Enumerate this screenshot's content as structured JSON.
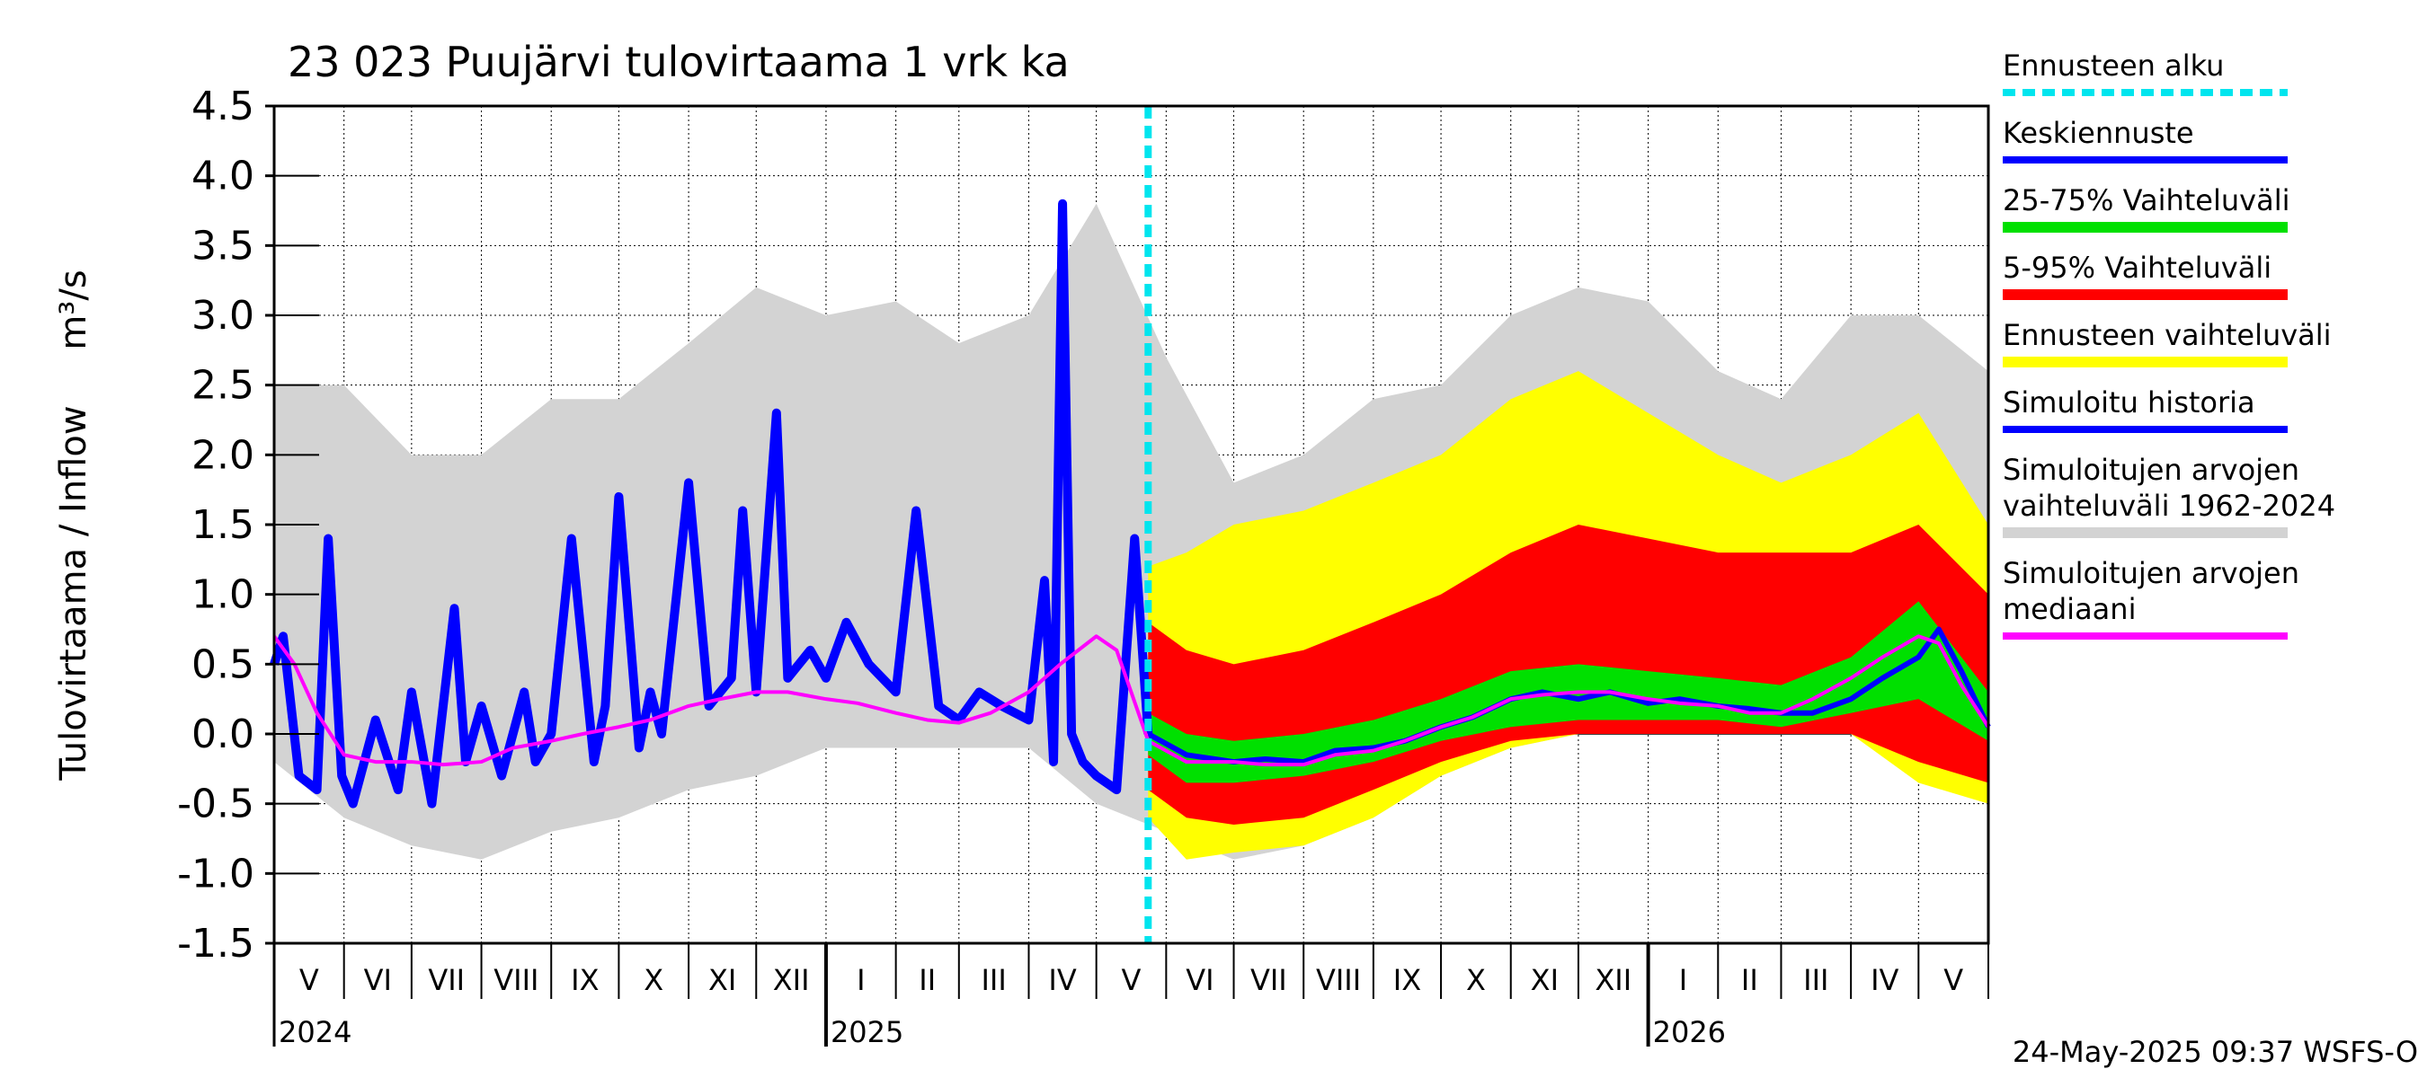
{
  "chart_data": {
    "type": "area",
    "title": "23 023 Puujärvi tulovirtaama 1 vrk ka",
    "ylabel": "Tulovirtaama / Inflow",
    "yunit": "m³/s",
    "ylim": [
      -1.5,
      4.5
    ],
    "yticks": [
      "4.5",
      "4.0",
      "3.5",
      "3.0",
      "2.5",
      "2.0",
      "1.5",
      "1.0",
      "0.5",
      "0.0",
      "-0.5",
      "-1.0",
      "-1.5"
    ],
    "xlim": [
      "2024-05-01",
      "2026-06-01"
    ],
    "months": [
      "V",
      "VI",
      "VII",
      "VIII",
      "IX",
      "X",
      "XI",
      "XII",
      "I",
      "II",
      "III",
      "IV",
      "V",
      "VI",
      "VII",
      "VIII",
      "IX",
      "X",
      "XI",
      "XII",
      "I",
      "II",
      "III",
      "IV",
      "V"
    ],
    "years": [
      "2024",
      "2025",
      "2026"
    ],
    "forecast_start": "2025-05-24",
    "grid": true,
    "footer": "24-May-2025 09:37 WSFS-O",
    "colors": {
      "forecast_start": "#00e5ee",
      "mean_forecast": "#0000ff",
      "p25_75": "#00e000",
      "p5_95": "#ff0000",
      "forecast_range": "#ffff00",
      "simulated_history": "#0000ff",
      "historical_range": "#d3d3d3",
      "median": "#ff00ff"
    },
    "legend": [
      {
        "label": "Ennusteen alku",
        "key": "forecast_start",
        "style": "dashed"
      },
      {
        "label": "Keskiennuste",
        "key": "mean_forecast",
        "style": "line"
      },
      {
        "label": "25-75% Vaihteluväli",
        "key": "p25_75",
        "style": "band"
      },
      {
        "label": "5-95% Vaihteluväli",
        "key": "p5_95",
        "style": "band"
      },
      {
        "label": "Ennusteen vaihteluväli",
        "key": "forecast_range",
        "style": "band"
      },
      {
        "label": "Simuloitu historia",
        "key": "simulated_history",
        "style": "line"
      },
      {
        "label": "Simuloitujen arvojen\nvaihteluväli 1962-2024",
        "key": "historical_range",
        "style": "band"
      },
      {
        "label": "Simuloitujen arvojen\nmediaani",
        "key": "median",
        "style": "line"
      }
    ],
    "series": {
      "median": {
        "x": [
          "2024-05-01",
          "2024-05-10",
          "2024-05-20",
          "2024-06-01",
          "2024-06-15",
          "2024-07-01",
          "2024-07-15",
          "2024-08-01",
          "2024-08-15",
          "2024-09-01",
          "2024-09-15",
          "2024-10-01",
          "2024-10-15",
          "2024-11-01",
          "2024-11-15",
          "2024-12-01",
          "2024-12-15",
          "2025-01-01",
          "2025-01-15",
          "2025-02-01",
          "2025-02-15",
          "2025-03-01",
          "2025-03-15",
          "2025-04-01",
          "2025-04-15",
          "2025-05-01",
          "2025-05-10",
          "2025-05-24",
          "2025-06-10",
          "2025-07-01",
          "2025-07-15",
          "2025-08-01",
          "2025-08-15",
          "2025-09-01",
          "2025-09-15",
          "2025-10-01",
          "2025-10-15",
          "2025-11-01",
          "2025-11-15",
          "2025-12-01",
          "2025-12-15",
          "2026-01-01",
          "2026-01-15",
          "2026-02-01",
          "2026-02-15",
          "2026-03-01",
          "2026-03-15",
          "2026-04-01",
          "2026-04-15",
          "2026-05-01",
          "2026-05-10",
          "2026-05-20",
          "2026-06-01"
        ],
        "y": [
          0.7,
          0.5,
          0.15,
          -0.15,
          -0.2,
          -0.2,
          -0.22,
          -0.2,
          -0.1,
          -0.05,
          0.0,
          0.05,
          0.1,
          0.2,
          0.25,
          0.3,
          0.3,
          0.25,
          0.22,
          0.15,
          0.1,
          0.08,
          0.15,
          0.3,
          0.5,
          0.7,
          0.6,
          -0.05,
          -0.2,
          -0.2,
          -0.22,
          -0.22,
          -0.15,
          -0.12,
          -0.05,
          0.05,
          0.12,
          0.25,
          0.28,
          0.3,
          0.3,
          0.25,
          0.22,
          0.2,
          0.15,
          0.15,
          0.25,
          0.4,
          0.55,
          0.7,
          0.65,
          0.35,
          0.05
        ]
      },
      "simulated_history": {
        "x": [
          "2024-05-01",
          "2024-05-05",
          "2024-05-12",
          "2024-05-20",
          "2024-05-25",
          "2024-05-31",
          "2024-06-05",
          "2024-06-15",
          "2024-06-25",
          "2024-07-01",
          "2024-07-10",
          "2024-07-20",
          "2024-07-25",
          "2024-08-01",
          "2024-08-10",
          "2024-08-20",
          "2024-08-25",
          "2024-09-01",
          "2024-09-10",
          "2024-09-20",
          "2024-09-25",
          "2024-10-01",
          "2024-10-10",
          "2024-10-15",
          "2024-10-20",
          "2024-11-01",
          "2024-11-10",
          "2024-11-20",
          "2024-11-25",
          "2024-12-01",
          "2024-12-10",
          "2024-12-15",
          "2024-12-25",
          "2025-01-01",
          "2025-01-10",
          "2025-01-20",
          "2025-02-01",
          "2025-02-10",
          "2025-02-20",
          "2025-03-01",
          "2025-03-10",
          "2025-03-20",
          "2025-04-01",
          "2025-04-08",
          "2025-04-12",
          "2025-04-16",
          "2025-04-20",
          "2025-04-25",
          "2025-05-01",
          "2025-05-10",
          "2025-05-18",
          "2025-05-24"
        ],
        "y": [
          0.5,
          0.7,
          -0.3,
          -0.4,
          1.4,
          -0.3,
          -0.5,
          0.1,
          -0.4,
          0.3,
          -0.5,
          0.9,
          -0.2,
          0.2,
          -0.3,
          0.3,
          -0.2,
          0.0,
          1.4,
          -0.2,
          0.2,
          1.7,
          -0.1,
          0.3,
          0.0,
          1.8,
          0.2,
          0.4,
          1.6,
          0.3,
          2.3,
          0.4,
          0.6,
          0.4,
          0.8,
          0.5,
          0.3,
          1.6,
          0.2,
          0.1,
          0.3,
          0.2,
          0.1,
          1.1,
          -0.2,
          3.8,
          0.0,
          -0.2,
          -0.3,
          -0.4,
          1.4,
          0.0
        ]
      },
      "mean_forecast": {
        "x": [
          "2025-05-24",
          "2025-06-10",
          "2025-07-01",
          "2025-07-15",
          "2025-08-01",
          "2025-08-15",
          "2025-09-01",
          "2025-09-15",
          "2025-10-01",
          "2025-10-15",
          "2025-11-01",
          "2025-11-15",
          "2025-12-01",
          "2025-12-15",
          "2026-01-01",
          "2026-01-15",
          "2026-02-01",
          "2026-02-15",
          "2026-03-01",
          "2026-03-15",
          "2026-04-01",
          "2026-04-15",
          "2026-05-01",
          "2026-05-10",
          "2026-05-20",
          "2026-06-01"
        ],
        "y": [
          0.0,
          -0.15,
          -0.2,
          -0.18,
          -0.2,
          -0.12,
          -0.1,
          -0.05,
          0.05,
          0.12,
          0.25,
          0.3,
          0.25,
          0.3,
          0.22,
          0.25,
          0.2,
          0.18,
          0.15,
          0.15,
          0.25,
          0.4,
          0.55,
          0.75,
          0.45,
          0.05
        ]
      },
      "historical_range": {
        "x": [
          "2024-05-01",
          "2024-06-01",
          "2024-07-01",
          "2024-08-01",
          "2024-09-01",
          "2024-10-01",
          "2024-11-01",
          "2024-12-01",
          "2025-01-01",
          "2025-02-01",
          "2025-03-01",
          "2025-04-01",
          "2025-05-01",
          "2025-06-01",
          "2025-07-01",
          "2025-08-01",
          "2025-09-01",
          "2025-10-01",
          "2025-11-01",
          "2025-12-01",
          "2026-01-01",
          "2026-02-01",
          "2026-03-01",
          "2026-04-01",
          "2026-05-01",
          "2026-06-01"
        ],
        "low": [
          -0.2,
          -0.6,
          -0.8,
          -0.9,
          -0.7,
          -0.6,
          -0.4,
          -0.3,
          -0.1,
          -0.1,
          -0.1,
          -0.1,
          -0.5,
          -0.7,
          -0.9,
          -0.8,
          -0.6,
          -0.3,
          -0.1,
          0.0,
          0.0,
          0.0,
          0.0,
          0.0,
          -0.3,
          -0.5
        ],
        "high": [
          2.5,
          2.5,
          2.0,
          2.0,
          2.4,
          2.4,
          2.8,
          3.2,
          3.0,
          3.1,
          2.8,
          3.0,
          3.8,
          2.7,
          1.8,
          2.0,
          2.4,
          2.5,
          3.0,
          3.2,
          3.1,
          2.6,
          2.4,
          3.0,
          3.0,
          2.6
        ]
      },
      "forecast_range": {
        "x": [
          "2025-05-24",
          "2025-06-10",
          "2025-07-01",
          "2025-08-01",
          "2025-09-01",
          "2025-10-01",
          "2025-11-01",
          "2025-12-01",
          "2026-01-01",
          "2026-02-01",
          "2026-03-01",
          "2026-04-01",
          "2026-05-01",
          "2026-06-01"
        ],
        "low": [
          -0.6,
          -0.9,
          -0.85,
          -0.8,
          -0.6,
          -0.3,
          -0.1,
          0.0,
          0.0,
          0.0,
          0.0,
          0.0,
          -0.35,
          -0.5
        ],
        "high": [
          1.2,
          1.3,
          1.5,
          1.6,
          1.8,
          2.0,
          2.4,
          2.6,
          2.3,
          2.0,
          1.8,
          2.0,
          2.3,
          1.5
        ]
      },
      "p5_95": {
        "x": [
          "2025-05-24",
          "2025-06-10",
          "2025-07-01",
          "2025-08-01",
          "2025-09-01",
          "2025-10-01",
          "2025-11-01",
          "2025-12-01",
          "2026-01-01",
          "2026-02-01",
          "2026-03-01",
          "2026-04-01",
          "2026-05-01",
          "2026-06-01"
        ],
        "low": [
          -0.4,
          -0.6,
          -0.65,
          -0.6,
          -0.4,
          -0.2,
          -0.05,
          0.0,
          0.0,
          0.0,
          0.0,
          0.0,
          -0.2,
          -0.35
        ],
        "high": [
          0.8,
          0.6,
          0.5,
          0.6,
          0.8,
          1.0,
          1.3,
          1.5,
          1.4,
          1.3,
          1.3,
          1.3,
          1.5,
          1.0
        ]
      },
      "p25_75": {
        "x": [
          "2025-05-24",
          "2025-06-10",
          "2025-07-01",
          "2025-08-01",
          "2025-09-01",
          "2025-10-01",
          "2025-11-01",
          "2025-12-01",
          "2026-01-01",
          "2026-02-01",
          "2026-03-01",
          "2026-04-01",
          "2026-05-01",
          "2026-06-01"
        ],
        "low": [
          -0.15,
          -0.35,
          -0.35,
          -0.3,
          -0.2,
          -0.05,
          0.05,
          0.1,
          0.1,
          0.1,
          0.05,
          0.15,
          0.25,
          -0.05
        ],
        "high": [
          0.15,
          0.0,
          -0.05,
          0.0,
          0.1,
          0.25,
          0.45,
          0.5,
          0.45,
          0.4,
          0.35,
          0.55,
          0.95,
          0.3
        ]
      }
    }
  }
}
